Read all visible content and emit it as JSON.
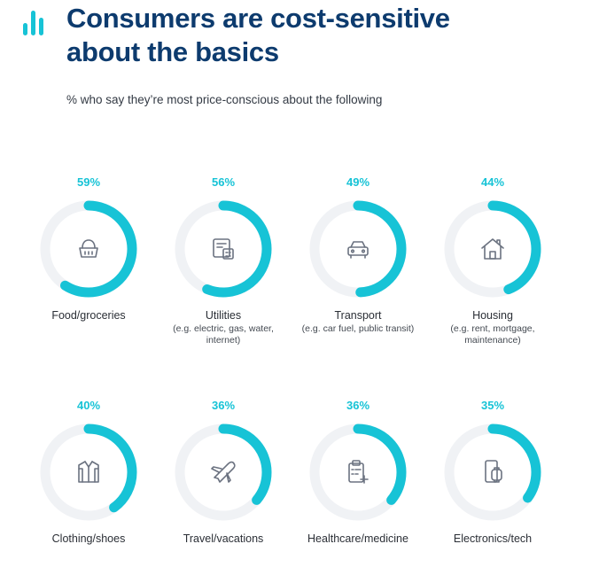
{
  "header": {
    "title": "Consumers are cost-sensitive about the basics",
    "subtitle": "% who say they’re most price-conscious about the following"
  },
  "colors": {
    "accent": "#17c3d6",
    "track": "#f0f2f5",
    "title": "#0d3b6e",
    "icon": "#6b7280"
  },
  "chart_data": {
    "type": "pie",
    "subtype": "donut-progress-grid",
    "title": "Consumers are cost-sensitive about the basics",
    "subtitle": "% who say they’re most price-conscious about the following",
    "unit": "%",
    "categories": [
      "Food/groceries",
      "Utilities",
      "Transport",
      "Housing",
      "Clothing/shoes",
      "Travel/vacations",
      "Healthcare/medicine",
      "Electronics/tech"
    ],
    "values": [
      59,
      56,
      49,
      44,
      40,
      36,
      36,
      35
    ],
    "items": [
      {
        "label": "Food/groceries",
        "value": 59,
        "display": "59%",
        "note": "",
        "icon": "basket-icon"
      },
      {
        "label": "Utilities",
        "value": 56,
        "display": "56%",
        "note": "(e.g. electric, gas, water, internet)",
        "icon": "bill-icon"
      },
      {
        "label": "Transport",
        "value": 49,
        "display": "49%",
        "note": "(e.g. car fuel, public transit)",
        "icon": "car-icon"
      },
      {
        "label": "Housing",
        "value": 44,
        "display": "44%",
        "note": "(e.g. rent, mortgage, maintenance)",
        "icon": "house-icon"
      },
      {
        "label": "Clothing/shoes",
        "value": 40,
        "display": "40%",
        "note": "",
        "icon": "shirt-icon"
      },
      {
        "label": "Travel/vacations",
        "value": 36,
        "display": "36%",
        "note": "",
        "icon": "airplane-icon"
      },
      {
        "label": "Healthcare/medicine",
        "value": 36,
        "display": "36%",
        "note": "",
        "icon": "clipboard-icon"
      },
      {
        "label": "Electronics/tech",
        "value": 35,
        "display": "35%",
        "note": "",
        "icon": "devices-icon"
      }
    ]
  }
}
